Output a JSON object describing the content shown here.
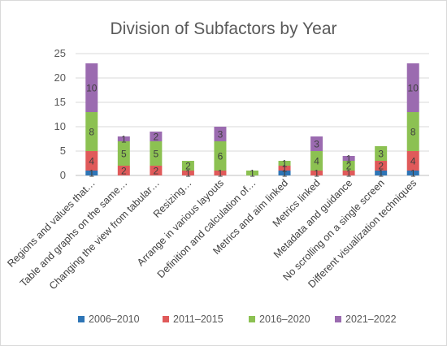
{
  "chart_data": {
    "type": "bar",
    "stacked": true,
    "title": "Division of Subfactors by Year",
    "xlabel": "",
    "ylabel": "",
    "ylim": [
      0,
      25
    ],
    "yticks": [
      0,
      5,
      10,
      15,
      20,
      25
    ],
    "grid": true,
    "legend_position": "bottom",
    "categories": [
      "Regions and values that…",
      "Table and graphs on the same…",
      "Changing the view from tabular…",
      "Resizing…",
      "Arrange in various layouts",
      "Definition and calculation of…",
      "Metrics and aim linked",
      "Metrics linked",
      "Metadata and guidance",
      "No scrolling on a single screen",
      "Different visualization techniques"
    ],
    "series": [
      {
        "name": "2006–2010",
        "color": "#2e75b6",
        "values": [
          1,
          0,
          0,
          0,
          0,
          0,
          1,
          0,
          0,
          1,
          1
        ]
      },
      {
        "name": "2011–2015",
        "color": "#e05a5a",
        "values": [
          4,
          2,
          2,
          1,
          1,
          0,
          1,
          1,
          1,
          2,
          4
        ]
      },
      {
        "name": "2016–2020",
        "color": "#8cc152",
        "values": [
          8,
          5,
          5,
          2,
          6,
          1,
          1,
          4,
          2,
          3,
          8
        ]
      },
      {
        "name": "2021–2022",
        "color": "#9b6bb0",
        "values": [
          10,
          1,
          2,
          0,
          3,
          0,
          0,
          3,
          1,
          0,
          10
        ]
      }
    ]
  }
}
